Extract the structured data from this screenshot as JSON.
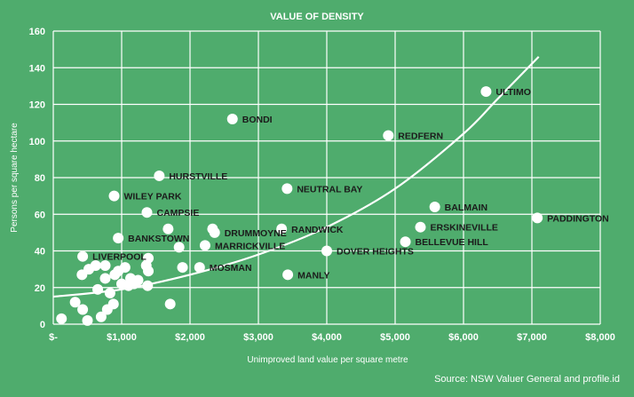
{
  "chart_data": {
    "type": "scatter",
    "title": "VALUE OF DENSITY",
    "xlabel": "Unimproved land value per square metre",
    "ylabel": "Persons per square hectare",
    "source": "Source: NSW Valuer General and profile.id",
    "xlim": [
      0,
      8000
    ],
    "ylim": [
      0,
      160
    ],
    "x_ticks": [
      {
        "value": 0,
        "label": "$-"
      },
      {
        "value": 1000,
        "label": "$1,000"
      },
      {
        "value": 2000,
        "label": "$2,000"
      },
      {
        "value": 3000,
        "label": "$3,000"
      },
      {
        "value": 4000,
        "label": "$4,000"
      },
      {
        "value": 5000,
        "label": "$5,000"
      },
      {
        "value": 6000,
        "label": "$6,000"
      },
      {
        "value": 7000,
        "label": "$7,000"
      },
      {
        "value": 8000,
        "label": "$8,000"
      }
    ],
    "y_ticks": [
      {
        "value": 0,
        "label": "0"
      },
      {
        "value": 20,
        "label": "20"
      },
      {
        "value": 40,
        "label": "40"
      },
      {
        "value": 60,
        "label": "60"
      },
      {
        "value": 80,
        "label": "80"
      },
      {
        "value": 100,
        "label": "100"
      },
      {
        "value": 120,
        "label": "120"
      },
      {
        "value": 140,
        "label": "140"
      },
      {
        "value": 160,
        "label": "160"
      }
    ],
    "grid": true,
    "labeled_points": [
      {
        "label": "ULTIMO",
        "x": 6330,
        "y": 127
      },
      {
        "label": "BONDI",
        "x": 2620,
        "y": 112
      },
      {
        "label": "REDFERN",
        "x": 4900,
        "y": 103
      },
      {
        "label": "HURSTVILLE",
        "x": 1550,
        "y": 81
      },
      {
        "label": "NEUTRAL BAY",
        "x": 3420,
        "y": 74
      },
      {
        "label": "WILEY PARK",
        "x": 890,
        "y": 70
      },
      {
        "label": "CAMPSIE",
        "x": 1370,
        "y": 61
      },
      {
        "label": "BALMAIN",
        "x": 5580,
        "y": 64
      },
      {
        "label": "PADDINGTON",
        "x": 7080,
        "y": 58
      },
      {
        "label": "ERSKINEVILLE",
        "x": 5370,
        "y": 53
      },
      {
        "label": "DRUMMOYNE",
        "x": 2360,
        "y": 50
      },
      {
        "label": "RANDWICK",
        "x": 3340,
        "y": 52
      },
      {
        "label": "BANKSTOWN",
        "x": 950,
        "y": 47
      },
      {
        "label": "BELLEVUE HILL",
        "x": 5150,
        "y": 45
      },
      {
        "label": "MARRICKVILLE",
        "x": 2220,
        "y": 43
      },
      {
        "label": "DOVER HEIGHTS",
        "x": 4000,
        "y": 40
      },
      {
        "label": "LIVERPOOL",
        "x": 430,
        "y": 37
      },
      {
        "label": "MOSMAN",
        "x": 2140,
        "y": 31
      },
      {
        "label": "MANLY",
        "x": 3430,
        "y": 27
      }
    ],
    "unlabeled_points": [
      {
        "x": 120,
        "y": 3
      },
      {
        "x": 320,
        "y": 12
      },
      {
        "x": 430,
        "y": 8
      },
      {
        "x": 500,
        "y": 2
      },
      {
        "x": 420,
        "y": 27
      },
      {
        "x": 520,
        "y": 30
      },
      {
        "x": 620,
        "y": 32
      },
      {
        "x": 650,
        "y": 19
      },
      {
        "x": 700,
        "y": 4
      },
      {
        "x": 760,
        "y": 32
      },
      {
        "x": 760,
        "y": 25
      },
      {
        "x": 790,
        "y": 8
      },
      {
        "x": 830,
        "y": 17
      },
      {
        "x": 880,
        "y": 11
      },
      {
        "x": 900,
        "y": 27
      },
      {
        "x": 950,
        "y": 29
      },
      {
        "x": 1000,
        "y": 22
      },
      {
        "x": 1050,
        "y": 31
      },
      {
        "x": 1100,
        "y": 21
      },
      {
        "x": 1130,
        "y": 25
      },
      {
        "x": 1180,
        "y": 22
      },
      {
        "x": 1240,
        "y": 24
      },
      {
        "x": 1360,
        "y": 32
      },
      {
        "x": 1380,
        "y": 21
      },
      {
        "x": 1390,
        "y": 29
      },
      {
        "x": 1390,
        "y": 36
      },
      {
        "x": 1680,
        "y": 52
      },
      {
        "x": 1710,
        "y": 11
      },
      {
        "x": 1840,
        "y": 42
      },
      {
        "x": 1890,
        "y": 31
      },
      {
        "x": 2330,
        "y": 52
      }
    ],
    "trendline": [
      {
        "x": 0,
        "y": 15
      },
      {
        "x": 1000,
        "y": 19
      },
      {
        "x": 2000,
        "y": 27
      },
      {
        "x": 3000,
        "y": 38
      },
      {
        "x": 4000,
        "y": 53
      },
      {
        "x": 5000,
        "y": 74
      },
      {
        "x": 6000,
        "y": 104
      },
      {
        "x": 6500,
        "y": 123
      },
      {
        "x": 7100,
        "y": 146
      }
    ]
  }
}
